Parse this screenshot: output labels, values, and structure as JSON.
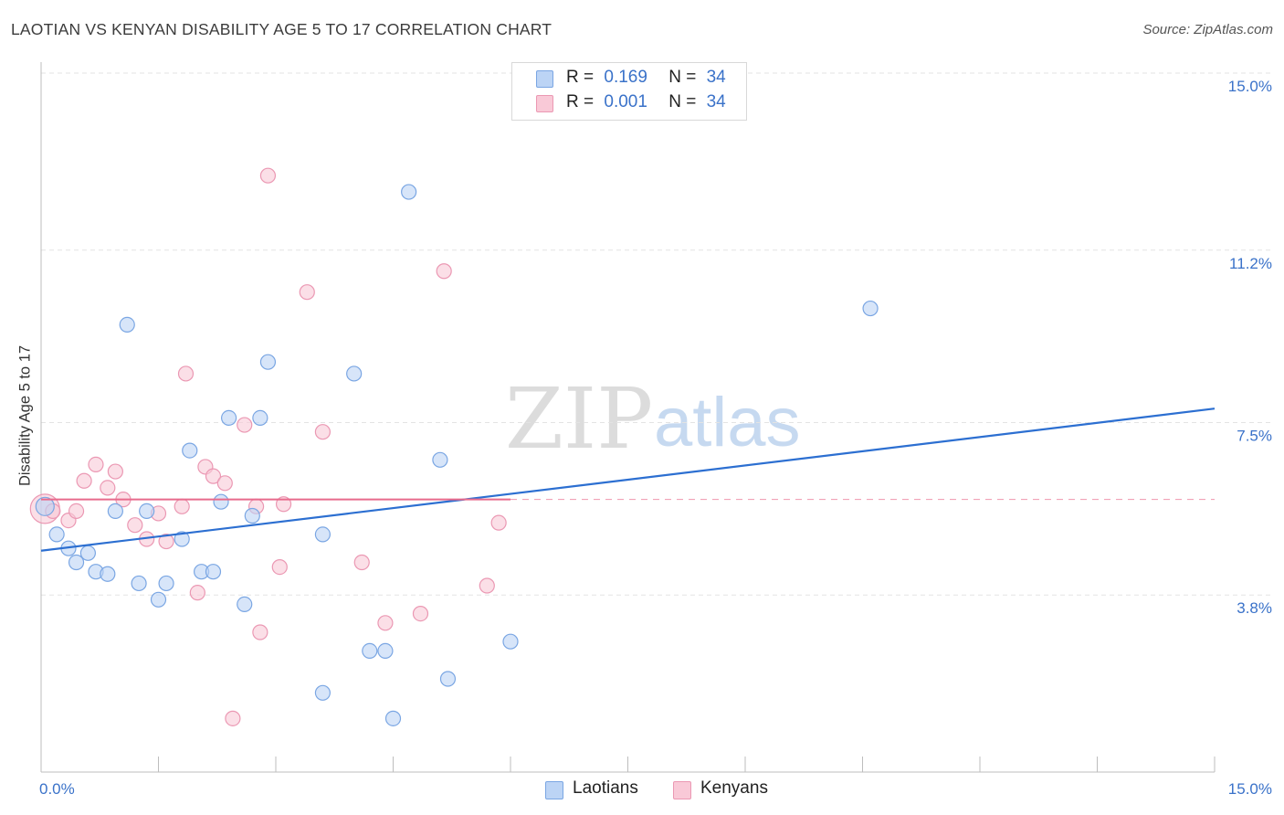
{
  "header": {
    "title": "LAOTIAN VS KENYAN DISABILITY AGE 5 TO 17 CORRELATION CHART",
    "source": "Source: ZipAtlas.com"
  },
  "legend": {
    "rows": [
      {
        "r_label": "R =",
        "r_value": "0.169",
        "n_label": "N =",
        "n_value": "34"
      },
      {
        "r_label": "R =",
        "r_value": "0.001",
        "n_label": "N =",
        "n_value": "34"
      }
    ]
  },
  "watermark": {
    "zip": "ZIP",
    "atlas": "atlas"
  },
  "colors": {
    "laotian_fill": "#bcd4f5",
    "laotian_stroke": "#7aa6e3",
    "laotian_line": "#2c6fd1",
    "kenyan_fill": "#f9c9d7",
    "kenyan_stroke": "#eb98b3",
    "kenyan_line": "#e86a8c",
    "axis_text": "#3a72c9",
    "grid": "#e3e3e3"
  },
  "chart_data": {
    "type": "scatter",
    "title": "LAOTIAN VS KENYAN DISABILITY AGE 5 TO 17 CORRELATION CHART",
    "xlabel": "",
    "ylabel": "Disability Age 5 to 17",
    "xlim": [
      0,
      15
    ],
    "ylim": [
      0,
      15
    ],
    "x_tick_labels": [
      "0.0%",
      "15.0%"
    ],
    "y_ticks": [
      3.8,
      7.5,
      11.2,
      15.0
    ],
    "y_tick_labels": [
      "3.8%",
      "7.5%",
      "11.2%",
      "15.0%"
    ],
    "grid": true,
    "legend_placement": "top-center",
    "series": [
      {
        "name": "Laotians",
        "trend": {
          "x": [
            0,
            15
          ],
          "y": [
            4.75,
            7.8
          ]
        },
        "points": [
          [
            0.05,
            5.7
          ],
          [
            0.2,
            5.1
          ],
          [
            0.35,
            4.8
          ],
          [
            0.45,
            4.5
          ],
          [
            0.6,
            4.7
          ],
          [
            0.7,
            4.3
          ],
          [
            0.85,
            4.25
          ],
          [
            0.95,
            5.6
          ],
          [
            1.1,
            9.6
          ],
          [
            1.25,
            4.05
          ],
          [
            1.35,
            5.6
          ],
          [
            1.5,
            3.7
          ],
          [
            1.6,
            4.05
          ],
          [
            1.8,
            5.0
          ],
          [
            1.9,
            6.9
          ],
          [
            2.05,
            4.3
          ],
          [
            2.2,
            4.3
          ],
          [
            2.3,
            5.8
          ],
          [
            2.4,
            7.6
          ],
          [
            2.6,
            3.6
          ],
          [
            2.7,
            5.5
          ],
          [
            2.8,
            7.6
          ],
          [
            2.9,
            8.8
          ],
          [
            3.6,
            1.7
          ],
          [
            3.6,
            5.1
          ],
          [
            4.0,
            8.55
          ],
          [
            4.2,
            2.6
          ],
          [
            4.4,
            2.6
          ],
          [
            4.5,
            1.15
          ],
          [
            4.7,
            12.45
          ],
          [
            5.1,
            6.7
          ],
          [
            5.2,
            2.0
          ],
          [
            6.0,
            2.8
          ],
          [
            10.6,
            9.95
          ]
        ]
      },
      {
        "name": "Kenyans",
        "trend": {
          "x": [
            0,
            6.0
          ],
          "y": [
            5.85,
            5.85
          ]
        },
        "points": [
          [
            0.05,
            5.65
          ],
          [
            0.15,
            5.6
          ],
          [
            0.35,
            5.4
          ],
          [
            0.45,
            5.6
          ],
          [
            0.55,
            6.25
          ],
          [
            0.7,
            6.6
          ],
          [
            0.85,
            6.1
          ],
          [
            0.95,
            6.45
          ],
          [
            1.05,
            5.85
          ],
          [
            1.2,
            5.3
          ],
          [
            1.35,
            5.0
          ],
          [
            1.5,
            5.55
          ],
          [
            1.6,
            4.95
          ],
          [
            1.8,
            5.7
          ],
          [
            1.85,
            8.55
          ],
          [
            2.0,
            3.85
          ],
          [
            2.1,
            6.55
          ],
          [
            2.2,
            6.35
          ],
          [
            2.35,
            6.2
          ],
          [
            2.45,
            1.15
          ],
          [
            2.6,
            7.45
          ],
          [
            2.75,
            5.7
          ],
          [
            2.8,
            3.0
          ],
          [
            2.9,
            12.8
          ],
          [
            3.05,
            4.4
          ],
          [
            3.1,
            5.75
          ],
          [
            3.4,
            10.3
          ],
          [
            3.6,
            7.3
          ],
          [
            4.1,
            4.5
          ],
          [
            4.4,
            3.2
          ],
          [
            4.85,
            3.4
          ],
          [
            5.15,
            10.75
          ],
          [
            5.7,
            4.0
          ],
          [
            5.85,
            5.35
          ]
        ]
      }
    ]
  },
  "bottom_legend": {
    "items": [
      "Laotians",
      "Kenyans"
    ]
  }
}
